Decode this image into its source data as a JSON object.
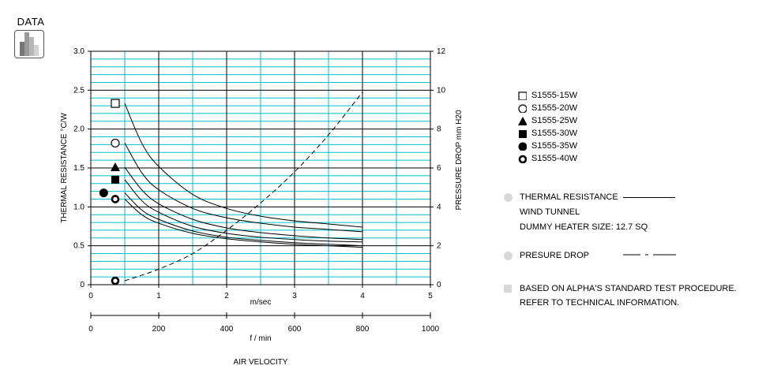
{
  "badge": {
    "label": "DATA",
    "icon": "bar-chart-icon"
  },
  "chart_data": {
    "type": "line",
    "left_axis": {
      "label": "THERMAL  RESISTANCE   °C/W",
      "ylim": [
        0,
        3.0
      ],
      "ticks": [
        "0",
        "0.5",
        "1.0",
        "1.5",
        "2.0",
        "2.5",
        "3.0"
      ]
    },
    "right_axis": {
      "label": "PRESSURE  DROP     mm H20",
      "ylim": [
        0,
        12
      ],
      "ticks": [
        "0",
        "2",
        "4",
        "6",
        "8",
        "10",
        "12"
      ]
    },
    "x_axis": {
      "label": "m/sec",
      "xlim": [
        0,
        5
      ],
      "ticks": [
        "0",
        "1",
        "2",
        "3",
        "4",
        "5"
      ]
    },
    "x2_axis": {
      "label": "f / min",
      "xlim": [
        0,
        1000
      ],
      "ticks": [
        "0",
        "200",
        "400",
        "600",
        "800",
        "1000"
      ]
    },
    "footer_label": "AIR VELOCITY",
    "grid": true,
    "grid_color": "#00c0c8",
    "series": [
      {
        "name": "S1555-15W",
        "marker": "open-square",
        "marker_value": 2.33,
        "x": [
          0.5,
          0.75,
          1.0,
          1.5,
          2.0,
          2.5,
          3.0,
          3.5,
          4.0
        ],
        "y": [
          2.33,
          1.82,
          1.52,
          1.16,
          0.98,
          0.88,
          0.82,
          0.78,
          0.74
        ]
      },
      {
        "name": "S1555-20W",
        "marker": "open-circle",
        "marker_value": 1.82,
        "x": [
          0.5,
          0.75,
          1.0,
          1.5,
          2.0,
          2.5,
          3.0,
          3.5,
          4.0
        ],
        "y": [
          1.82,
          1.44,
          1.22,
          0.98,
          0.86,
          0.79,
          0.74,
          0.71,
          0.68
        ]
      },
      {
        "name": "S1555-25W",
        "marker": "filled-triangle",
        "marker_value": 1.51,
        "x": [
          0.5,
          0.75,
          1.0,
          1.5,
          2.0,
          2.5,
          3.0,
          3.5,
          4.0
        ],
        "y": [
          1.51,
          1.22,
          1.04,
          0.84,
          0.73,
          0.67,
          0.63,
          0.6,
          0.58
        ]
      },
      {
        "name": "S1555-30W",
        "marker": "filled-square",
        "marker_value": 1.35,
        "x": [
          0.5,
          0.75,
          1.0,
          1.5,
          2.0,
          2.5,
          3.0,
          3.5,
          4.0
        ],
        "y": [
          1.35,
          1.08,
          0.93,
          0.75,
          0.66,
          0.61,
          0.58,
          0.56,
          0.55
        ]
      },
      {
        "name": "S1555-35W",
        "marker": "filled-circle",
        "marker_value": 1.18,
        "x": [
          0.5,
          0.75,
          1.0,
          1.5,
          2.0,
          2.5,
          3.0,
          3.5,
          4.0
        ],
        "y": [
          1.18,
          0.96,
          0.84,
          0.69,
          0.61,
          0.57,
          0.54,
          0.52,
          0.5
        ]
      },
      {
        "name": "S1555-40W",
        "marker": "bold-open-circle",
        "marker_value": 1.1,
        "x": [
          0.5,
          0.75,
          1.0,
          1.5,
          2.0,
          2.5,
          3.0,
          3.5,
          4.0
        ],
        "y": [
          1.1,
          0.9,
          0.79,
          0.66,
          0.59,
          0.55,
          0.52,
          0.5,
          0.48
        ]
      }
    ],
    "pressure_drop": {
      "axis": "right",
      "style": "dashed",
      "marker": "bold-open-circle",
      "marker_value": 0.05,
      "x": [
        0.5,
        1.0,
        1.5,
        2.0,
        2.5,
        3.0,
        3.5,
        4.0
      ],
      "y": [
        0.2,
        0.8,
        1.6,
        2.8,
        4.2,
        5.8,
        7.7,
        9.9
      ]
    }
  },
  "legend_items": [
    {
      "label": "S1555-15W",
      "symbol": "open-square"
    },
    {
      "label": "S1555-20W",
      "symbol": "open-circle"
    },
    {
      "label": "S1555-25W",
      "symbol": "filled-triangle"
    },
    {
      "label": "S1555-30W",
      "symbol": "filled-square"
    },
    {
      "label": "S1555-35W",
      "symbol": "filled-circle"
    },
    {
      "label": "S1555-40W",
      "symbol": "bold-open-circle"
    }
  ],
  "notes": {
    "thermal_resistance": "THERMAL RESISTANCE",
    "wind_tunnel": "WIND TUNNEL",
    "dummy_heater": "DUMMY HEATER SIZE: 12.7 SQ",
    "pressure_drop": "PRESURE DROP",
    "test_procedure_1": "BASED ON ALPHA'S STANDARD TEST PROCEDURE.",
    "test_procedure_2": "REFER TO TECHNICAL INFORMATION."
  }
}
